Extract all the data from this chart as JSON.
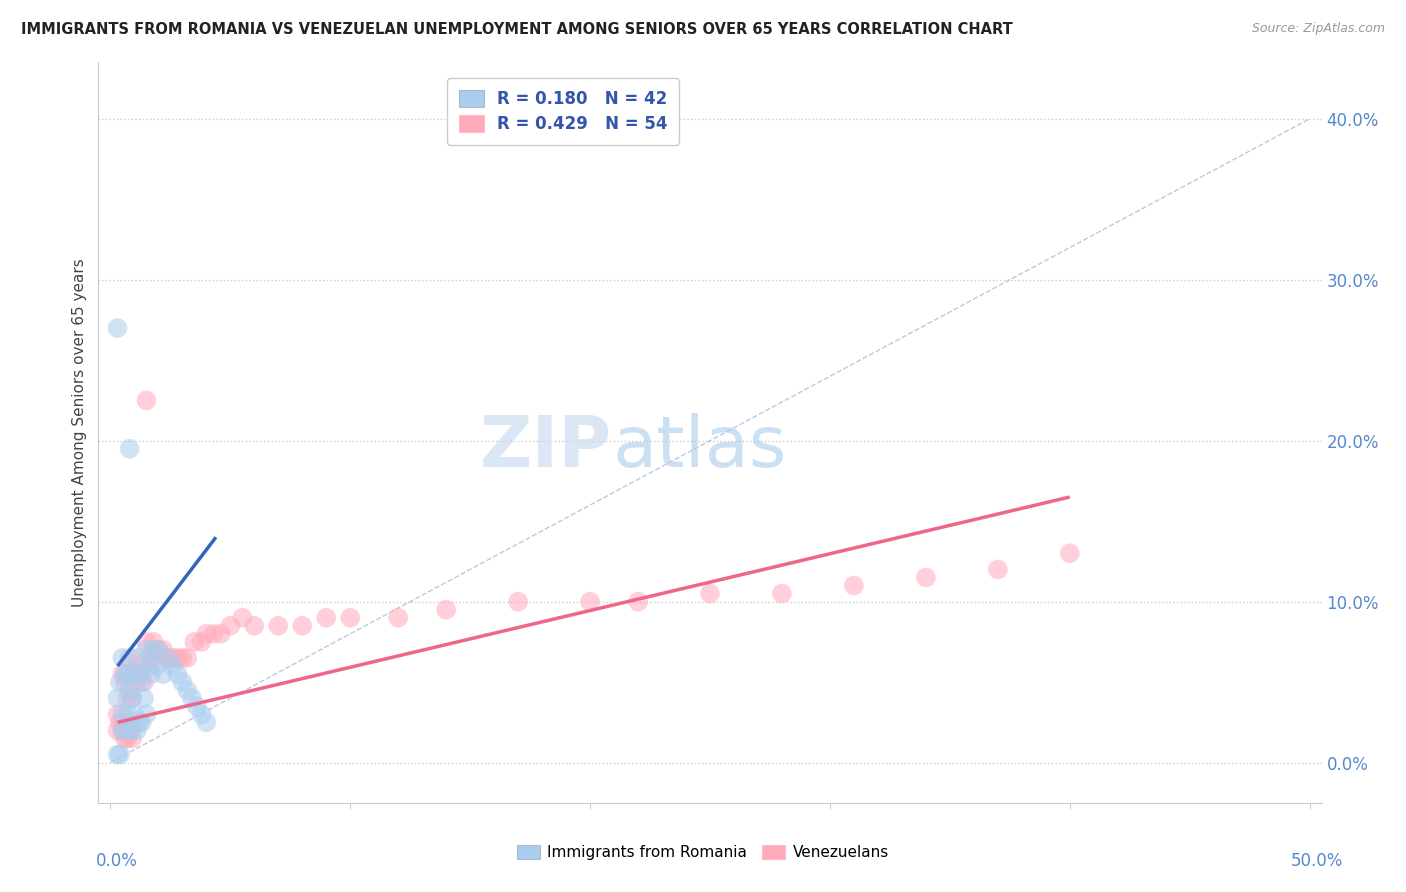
{
  "title": "IMMIGRANTS FROM ROMANIA VS VENEZUELAN UNEMPLOYMENT AMONG SENIORS OVER 65 YEARS CORRELATION CHART",
  "source": "Source: ZipAtlas.com",
  "ylabel": "Unemployment Among Seniors over 65 years",
  "ytick_labels": [
    "0.0%",
    "10.0%",
    "20.0%",
    "30.0%",
    "40.0%"
  ],
  "ytick_values": [
    0.0,
    0.1,
    0.2,
    0.3,
    0.4
  ],
  "xlim": [
    -0.005,
    0.505
  ],
  "ylim": [
    -0.025,
    0.435
  ],
  "legend_romania_r": "R = 0.180",
  "legend_romania_n": "N = 42",
  "legend_venezuela_r": "R = 0.429",
  "legend_venezuela_n": "N = 54",
  "color_blue": "#AACCEE",
  "color_pink": "#FFAABB",
  "color_blue_line": "#3366BB",
  "color_pink_line": "#EE6688",
  "color_legend_text": "#3355AA",
  "watermark_zip": "ZIP",
  "watermark_atlas": "atlas",
  "romania_x": [
    0.003,
    0.003,
    0.004,
    0.005,
    0.005,
    0.005,
    0.006,
    0.006,
    0.007,
    0.007,
    0.008,
    0.008,
    0.009,
    0.009,
    0.01,
    0.01,
    0.011,
    0.011,
    0.012,
    0.012,
    0.013,
    0.013,
    0.014,
    0.015,
    0.015,
    0.016,
    0.017,
    0.018,
    0.019,
    0.02,
    0.022,
    0.024,
    0.026,
    0.028,
    0.03,
    0.032,
    0.034,
    0.036,
    0.038,
    0.04,
    0.003,
    0.004
  ],
  "romania_y": [
    0.27,
    0.04,
    0.05,
    0.065,
    0.03,
    0.02,
    0.055,
    0.02,
    0.055,
    0.03,
    0.195,
    0.045,
    0.04,
    0.02,
    0.055,
    0.03,
    0.065,
    0.02,
    0.055,
    0.025,
    0.05,
    0.025,
    0.04,
    0.07,
    0.03,
    0.06,
    0.055,
    0.07,
    0.06,
    0.07,
    0.055,
    0.065,
    0.06,
    0.055,
    0.05,
    0.045,
    0.04,
    0.035,
    0.03,
    0.025,
    0.005,
    0.005
  ],
  "venezuela_x": [
    0.003,
    0.003,
    0.004,
    0.005,
    0.005,
    0.006,
    0.006,
    0.007,
    0.007,
    0.008,
    0.008,
    0.009,
    0.009,
    0.01,
    0.011,
    0.012,
    0.013,
    0.014,
    0.015,
    0.016,
    0.017,
    0.018,
    0.019,
    0.02,
    0.022,
    0.024,
    0.026,
    0.028,
    0.03,
    0.032,
    0.035,
    0.038,
    0.04,
    0.043,
    0.046,
    0.05,
    0.055,
    0.06,
    0.07,
    0.08,
    0.09,
    0.1,
    0.12,
    0.14,
    0.17,
    0.2,
    0.22,
    0.25,
    0.28,
    0.31,
    0.34,
    0.37,
    0.4,
    0.015
  ],
  "venezuela_y": [
    0.03,
    0.02,
    0.025,
    0.055,
    0.02,
    0.05,
    0.015,
    0.04,
    0.015,
    0.065,
    0.02,
    0.04,
    0.015,
    0.055,
    0.05,
    0.06,
    0.055,
    0.05,
    0.075,
    0.065,
    0.065,
    0.075,
    0.065,
    0.07,
    0.07,
    0.065,
    0.065,
    0.065,
    0.065,
    0.065,
    0.075,
    0.075,
    0.08,
    0.08,
    0.08,
    0.085,
    0.09,
    0.085,
    0.085,
    0.085,
    0.09,
    0.09,
    0.09,
    0.095,
    0.1,
    0.1,
    0.1,
    0.105,
    0.105,
    0.11,
    0.115,
    0.12,
    0.13,
    0.225
  ],
  "romania_trend_x": [
    0.003,
    0.044
  ],
  "romania_trend_y": [
    0.06,
    0.14
  ],
  "venezuela_trend_x": [
    0.003,
    0.4
  ],
  "venezuela_trend_y": [
    0.025,
    0.165
  ],
  "ref_line_x": [
    0.0,
    0.5
  ],
  "ref_line_y": [
    0.0,
    0.4
  ]
}
